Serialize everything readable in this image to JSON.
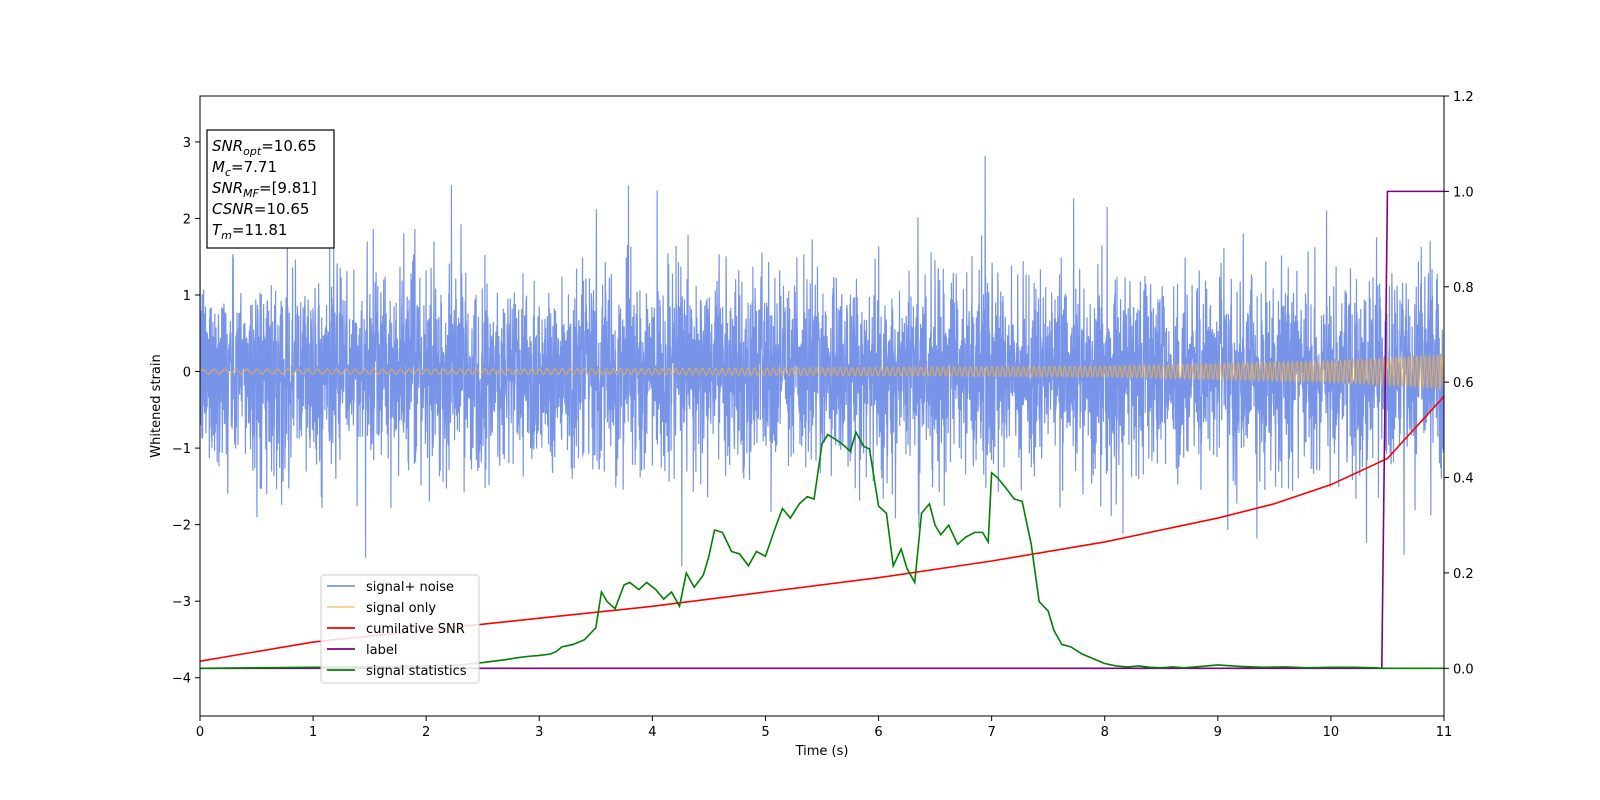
{
  "chart_data": {
    "type": "line",
    "xlabel": "Time (s)",
    "ylabel": "Whitened strain",
    "xlim": [
      0,
      11
    ],
    "ylim": [
      -4.5,
      3.6
    ],
    "y2lim": [
      -0.1,
      1.2
    ],
    "x_ticks": [
      0,
      1,
      2,
      3,
      4,
      5,
      6,
      7,
      8,
      9,
      10,
      11
    ],
    "y_ticks": [
      -4,
      -3,
      -2,
      -1,
      0,
      1,
      2,
      3
    ],
    "y2_ticks": [
      0.0,
      0.2,
      0.4,
      0.6,
      0.8,
      1.0,
      1.2
    ],
    "grid": false,
    "legend_position": "lower-left",
    "annotation": {
      "lines": [
        {
          "base": "SNR",
          "sub": "opt",
          "value": "=10.65"
        },
        {
          "base": "M",
          "sub": "c",
          "value": "=7.71"
        },
        {
          "base": "SNR",
          "sub": "MF",
          "value": "=[9.81]"
        },
        {
          "base": "CSNR",
          "sub": "",
          "value": "=10.65"
        },
        {
          "base": "T",
          "sub": "m",
          "value": "=11.81"
        }
      ]
    },
    "series": [
      {
        "name": "signal+ noise",
        "color": "#7894e8",
        "axis": "left",
        "kind": "noise",
        "std": 0.62,
        "x_range": [
          0,
          11
        ]
      },
      {
        "name": "signal only",
        "color": "#f5b041",
        "axis": "left",
        "kind": "chirp",
        "amplitude": {
          "x": [
            0,
            4,
            8,
            10,
            11
          ],
          "y": [
            0.03,
            0.04,
            0.07,
            0.14,
            0.22
          ]
        }
      },
      {
        "name": "cumilative SNR",
        "color": "#ff0000",
        "axis": "right",
        "x": [
          0,
          1,
          2,
          3,
          4,
          5,
          6,
          7,
          8,
          9,
          9.5,
          10,
          10.5,
          11
        ],
        "y": [
          0.015,
          0.055,
          0.08,
          0.105,
          0.13,
          0.16,
          0.19,
          0.225,
          0.265,
          0.315,
          0.345,
          0.385,
          0.44,
          0.57
        ]
      },
      {
        "name": "label",
        "color": "#800080",
        "axis": "right",
        "x": [
          0,
          10.45,
          10.5,
          11
        ],
        "y": [
          0.0,
          0.0,
          1.0,
          1.0
        ]
      },
      {
        "name": "signal statistics",
        "color": "#008000",
        "axis": "right",
        "x": [
          0,
          0.5,
          1,
          1.5,
          2,
          2.3,
          2.5,
          2.7,
          2.8,
          2.9,
          3.0,
          3.1,
          3.15,
          3.2,
          3.3,
          3.4,
          3.5,
          3.55,
          3.6,
          3.67,
          3.75,
          3.8,
          3.88,
          3.95,
          4.03,
          4.1,
          4.17,
          4.24,
          4.3,
          4.37,
          4.45,
          4.5,
          4.55,
          4.62,
          4.7,
          4.77,
          4.85,
          4.92,
          5.0,
          5.08,
          5.15,
          5.22,
          5.3,
          5.37,
          5.43,
          5.5,
          5.55,
          5.62,
          5.68,
          5.75,
          5.8,
          5.87,
          5.92,
          6.0,
          6.07,
          6.13,
          6.2,
          6.25,
          6.32,
          6.38,
          6.45,
          6.5,
          6.55,
          6.62,
          6.7,
          6.77,
          6.85,
          6.92,
          6.97,
          7.0,
          7.05,
          7.12,
          7.2,
          7.27,
          7.35,
          7.42,
          7.5,
          7.55,
          7.62,
          7.7,
          7.8,
          7.9,
          8.0,
          8.1,
          8.2,
          8.3,
          8.4,
          8.5,
          8.6,
          8.7,
          8.8,
          8.9,
          9.0,
          9.2,
          9.4,
          9.6,
          9.8,
          10.0,
          10.2,
          10.4,
          10.45,
          10.6,
          11
        ],
        "y": [
          0.0,
          0.001,
          0.002,
          0.003,
          0.005,
          0.007,
          0.012,
          0.018,
          0.022,
          0.025,
          0.027,
          0.03,
          0.035,
          0.045,
          0.05,
          0.06,
          0.085,
          0.16,
          0.14,
          0.125,
          0.175,
          0.18,
          0.165,
          0.18,
          0.165,
          0.145,
          0.16,
          0.13,
          0.2,
          0.17,
          0.195,
          0.235,
          0.29,
          0.285,
          0.245,
          0.24,
          0.215,
          0.245,
          0.235,
          0.29,
          0.335,
          0.315,
          0.345,
          0.36,
          0.355,
          0.47,
          0.49,
          0.48,
          0.47,
          0.455,
          0.495,
          0.465,
          0.46,
          0.34,
          0.325,
          0.215,
          0.25,
          0.21,
          0.18,
          0.325,
          0.345,
          0.3,
          0.28,
          0.3,
          0.26,
          0.275,
          0.285,
          0.285,
          0.265,
          0.41,
          0.4,
          0.38,
          0.355,
          0.35,
          0.26,
          0.14,
          0.12,
          0.08,
          0.05,
          0.045,
          0.03,
          0.02,
          0.01,
          0.005,
          0.003,
          0.005,
          0.002,
          0.001,
          0.003,
          0.001,
          0.003,
          0.005,
          0.007,
          0.004,
          0.002,
          0.003,
          0.001,
          0.002,
          0.002,
          0.001,
          0.0,
          0.0,
          0.0
        ]
      }
    ]
  }
}
